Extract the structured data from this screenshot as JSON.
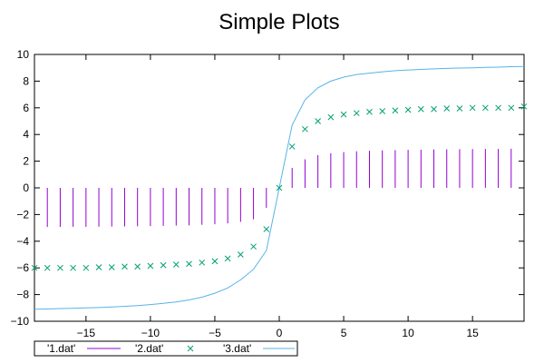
{
  "chart_data": {
    "type": "line",
    "title": "Simple Plots",
    "xlim": [
      -19,
      19
    ],
    "ylim": [
      -10,
      10
    ],
    "xticks": [
      "−15",
      "−10",
      "−5",
      "0",
      "5",
      "10",
      "15"
    ],
    "xtick_values": [
      -15,
      -10,
      -5,
      0,
      5,
      10,
      15
    ],
    "yticks": [
      "−10",
      "−8",
      "−6",
      "−4",
      "−2",
      "0",
      "2",
      "4",
      "6",
      "8",
      "10"
    ],
    "ytick_values": [
      -10,
      -8,
      -6,
      -4,
      -2,
      0,
      2,
      4,
      6,
      8,
      10
    ],
    "legend_position": "bottom-left outside",
    "series": [
      {
        "name": "'1.dat'",
        "style": "impulses",
        "color": "#9400d3",
        "x": [
          -18,
          -17,
          -16,
          -15,
          -14,
          -13,
          -12,
          -11,
          -10,
          -9,
          -8,
          -7,
          -6,
          -5,
          -4,
          -3,
          -2,
          -1,
          0,
          1,
          2,
          3,
          4,
          5,
          6,
          7,
          8,
          9,
          10,
          11,
          12,
          13,
          14,
          15,
          16,
          17,
          18
        ],
        "y": [
          -2.93,
          -2.93,
          -2.92,
          -2.92,
          -2.91,
          -2.9,
          -2.89,
          -2.88,
          -2.87,
          -2.85,
          -2.83,
          -2.81,
          -2.77,
          -2.73,
          -2.66,
          -2.55,
          -2.36,
          -1.5,
          0,
          1.5,
          2.14,
          2.45,
          2.6,
          2.68,
          2.74,
          2.78,
          2.81,
          2.83,
          2.85,
          2.86,
          2.88,
          2.89,
          2.9,
          2.91,
          2.92,
          2.92,
          2.93
        ]
      },
      {
        "name": "'2.dat'",
        "style": "points",
        "color": "#009e73",
        "x": [
          -19,
          -18,
          -17,
          -16,
          -15,
          -14,
          -13,
          -12,
          -11,
          -10,
          -9,
          -8,
          -7,
          -6,
          -5,
          -4,
          -3,
          -2,
          -1,
          0,
          1,
          2,
          3,
          4,
          5,
          6,
          7,
          8,
          9,
          10,
          11,
          12,
          13,
          14,
          15,
          16,
          17,
          18,
          19
        ],
        "y": [
          -6.0,
          -6.0,
          -6.0,
          -6.0,
          -6.0,
          -5.95,
          -5.95,
          -5.9,
          -5.9,
          -5.85,
          -5.8,
          -5.75,
          -5.7,
          -5.6,
          -5.5,
          -5.3,
          -5.0,
          -4.4,
          -3.1,
          0,
          3.1,
          4.4,
          5.0,
          5.3,
          5.5,
          5.6,
          5.7,
          5.75,
          5.8,
          5.85,
          5.9,
          5.9,
          5.95,
          5.95,
          6.0,
          6.0,
          6.0,
          6.0,
          6.1
        ]
      },
      {
        "name": "'3.dat'",
        "style": "lines",
        "color": "#56b4e9",
        "x": [
          -19,
          -18,
          -17,
          -16,
          -15,
          -14,
          -13,
          -12,
          -11,
          -10,
          -9,
          -8,
          -7,
          -6,
          -5,
          -4,
          -3,
          -2,
          -1,
          0,
          1,
          2,
          3,
          4,
          5,
          6,
          7,
          8,
          9,
          10,
          11,
          12,
          13,
          14,
          15,
          16,
          17,
          18,
          19
        ],
        "y": [
          -9.1,
          -9.08,
          -9.05,
          -9.03,
          -9.0,
          -8.97,
          -8.93,
          -8.88,
          -8.82,
          -8.75,
          -8.66,
          -8.55,
          -8.4,
          -8.2,
          -7.9,
          -7.5,
          -6.9,
          -6.1,
          -4.7,
          0,
          4.7,
          6.6,
          7.5,
          8.0,
          8.3,
          8.5,
          8.6,
          8.7,
          8.78,
          8.84,
          8.88,
          8.92,
          8.95,
          8.98,
          9.0,
          9.03,
          9.05,
          9.08,
          9.1
        ]
      }
    ]
  }
}
